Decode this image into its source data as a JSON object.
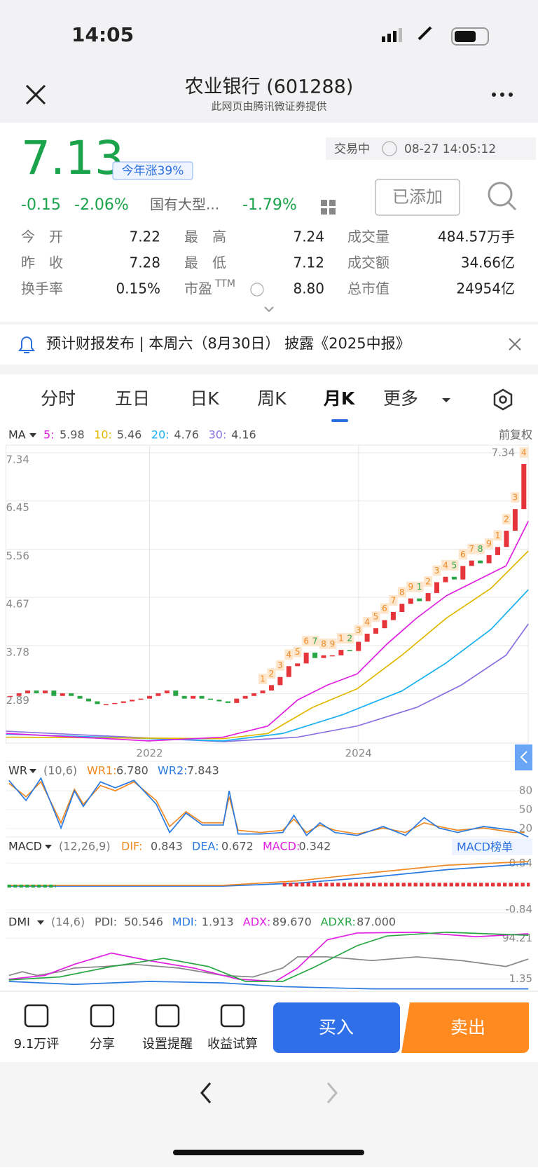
{
  "status": {
    "time": "14:05"
  },
  "header": {
    "title": "农业银行 (601288)",
    "subtitle": "此网页由腾讯微证券提供"
  },
  "quote": {
    "price": "7.13",
    "badge": "今年涨39%",
    "state": "交易中",
    "time": "08-27 14:05:12",
    "change": "-0.15",
    "change_pct": "-2.06%",
    "sector": "国有大型...",
    "sector_pct": "-1.79%",
    "button": "已添加"
  },
  "stats": [
    [
      {
        "label": "今　开",
        "value": "7.22"
      },
      {
        "label": "最　高",
        "value": "7.24"
      },
      {
        "label": "成交量",
        "value": "484.57万手"
      }
    ],
    [
      {
        "label": "昨　收",
        "value": "7.28"
      },
      {
        "label": "最　低",
        "value": "7.12"
      },
      {
        "label": "成交额",
        "value": "34.66亿"
      }
    ],
    [
      {
        "label": "换手率",
        "value": "0.15%"
      },
      {
        "label": "市盈",
        "sup": "TTM",
        "value": "8.80"
      },
      {
        "label": "总市值",
        "value": "24954亿"
      }
    ]
  ],
  "notice": "预计财报发布 | 本周六（8月30日） 披露《2025中报》",
  "tabs": [
    "分时",
    "五日",
    "日K",
    "周K",
    "月K",
    "更多"
  ],
  "chart_data": {
    "type": "candlestick",
    "adjust": "前复权",
    "ma": {
      "name": "MA",
      "items": [
        {
          "label": "5:",
          "value": "5.98",
          "color": "#e020e0"
        },
        {
          "label": "10:",
          "value": "5.46",
          "color": "#e0b800"
        },
        {
          "label": "20:",
          "value": "4.76",
          "color": "#1ab0f0"
        },
        {
          "label": "30:",
          "value": "4.16",
          "color": "#8a70e0"
        }
      ]
    },
    "categories": [
      null,
      null,
      null,
      null,
      null,
      null,
      null,
      null,
      null,
      null,
      null,
      null,
      null,
      null,
      null,
      null,
      "2022",
      null,
      null,
      null,
      null,
      null,
      null,
      null,
      null,
      null,
      null,
      null,
      null,
      null,
      null,
      null,
      null,
      null,
      null,
      null,
      null,
      null,
      null,
      null,
      "2024",
      null,
      null,
      null,
      null,
      null,
      null,
      null,
      null,
      null,
      null,
      null,
      null,
      null,
      null,
      null,
      null,
      null,
      null,
      null
    ],
    "values": [
      2.85,
      2.9,
      2.95,
      2.9,
      2.95,
      2.85,
      2.9,
      2.85,
      2.8,
      2.75,
      2.7,
      2.7,
      2.72,
      2.75,
      2.78,
      2.8,
      2.85,
      2.9,
      2.95,
      2.85,
      2.8,
      2.85,
      2.8,
      2.78,
      2.75,
      2.72,
      2.8,
      2.85,
      2.9,
      2.95,
      3.05,
      3.2,
      3.4,
      3.45,
      3.65,
      3.55,
      3.6,
      3.6,
      3.7,
      3.68,
      3.85,
      4.0,
      4.1,
      4.25,
      4.4,
      4.55,
      4.65,
      4.6,
      4.75,
      4.95,
      5.05,
      5.0,
      5.25,
      5.35,
      5.3,
      5.45,
      5.6,
      5.9,
      6.3,
      7.13
    ],
    "td": [
      null,
      null,
      null,
      null,
      null,
      null,
      null,
      null,
      null,
      null,
      null,
      null,
      null,
      null,
      null,
      null,
      null,
      null,
      null,
      null,
      null,
      null,
      null,
      null,
      null,
      null,
      null,
      null,
      null,
      1,
      2,
      3,
      4,
      5,
      6,
      7,
      8,
      9,
      1,
      2,
      3,
      4,
      5,
      6,
      7,
      8,
      9,
      1,
      2,
      3,
      4,
      5,
      6,
      7,
      8,
      9,
      1,
      2,
      3,
      4
    ],
    "up_color": "#e5343a",
    "down_color": "#2aa745",
    "ylim": [
      1.98,
      7.48
    ],
    "yticks": [
      7.34,
      6.45,
      5.56,
      4.67,
      3.78,
      2.89
    ],
    "high_label": "7.34",
    "grid": true,
    "wr": {
      "name": "WR",
      "params": "(10,6)",
      "items": [
        {
          "label": "WR1:",
          "value": "6.780",
          "color": "#f08a24"
        },
        {
          "label": "WR2:",
          "value": "7.843",
          "color": "#2a7ae0"
        }
      ],
      "ylim": [
        0,
        100
      ],
      "yticks": [
        80,
        50,
        20
      ]
    },
    "macd": {
      "name": "MACD",
      "params": "(12,26,9)",
      "items": [
        {
          "label": "DIF:",
          "value": "0.843",
          "color": "#f08a24"
        },
        {
          "label": "DEA:",
          "value": "0.672",
          "color": "#2a7ae0"
        },
        {
          "label": "MACD:",
          "value": "0.342",
          "color": "#e020e0"
        }
      ],
      "button": "MACD榜单",
      "ylim": [
        -1.1,
        1.1
      ],
      "yticks": [
        0.84,
        -0.84
      ]
    },
    "dmi": {
      "name": "DMI",
      "params": "(14,6)",
      "items": [
        {
          "label": "PDI:",
          "value": "50.546",
          "color": "#555"
        },
        {
          "label": "MDI:",
          "value": "1.913",
          "color": "#2a7ae0"
        },
        {
          "label": "ADX:",
          "value": "89.670",
          "color": "#e020e0"
        },
        {
          "label": "ADXR:",
          "value": "87.000",
          "color": "#2aa745"
        }
      ],
      "ylim": [
        -12,
        108
      ],
      "yticks": [
        94.21,
        1.35
      ]
    }
  },
  "bottom": {
    "actions": [
      "9.1万评",
      "分享",
      "设置提醒",
      "收益试算"
    ],
    "buy": "买入",
    "sell": "卖出"
  }
}
